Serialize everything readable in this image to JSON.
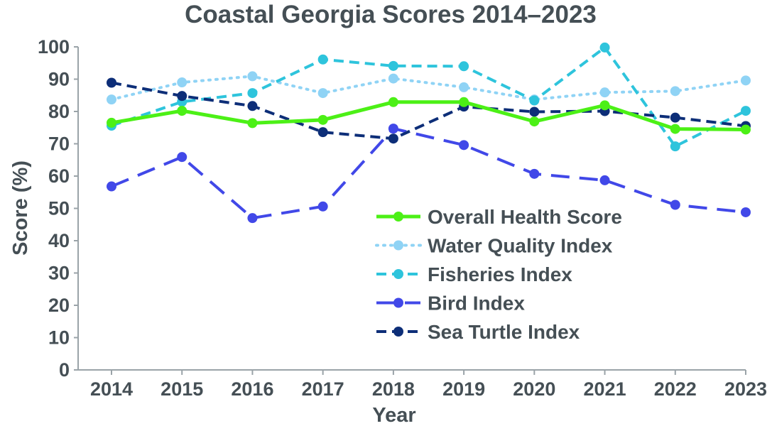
{
  "chart_data": {
    "type": "line",
    "title": "Coastal Georgia Scores 2014–2023",
    "xlabel": "Year",
    "ylabel": "Score (%)",
    "ylim": [
      0,
      100
    ],
    "yticks": [
      0,
      10,
      20,
      30,
      40,
      50,
      60,
      70,
      80,
      90,
      100
    ],
    "grid": false,
    "legend_position": "bottom-right",
    "categories": [
      "2014",
      "2015",
      "2016",
      "2017",
      "2018",
      "2019",
      "2020",
      "2021",
      "2022",
      "2023"
    ],
    "series": [
      {
        "name": "Overall Health Score",
        "color": "#4cf016",
        "style": "solid",
        "values": [
          76.5,
          80.2,
          76.4,
          77.4,
          82.9,
          82.9,
          76.9,
          81.9,
          74.6,
          74.4
        ]
      },
      {
        "name": "Water Quality Index",
        "color": "#8fd3f5",
        "style": "dotted",
        "values": [
          83.7,
          89.0,
          90.9,
          85.7,
          90.2,
          87.5,
          83.7,
          85.9,
          86.3,
          89.6
        ]
      },
      {
        "name": "Fisheries Index",
        "color": "#2ec4dc",
        "style": "dashed",
        "values": [
          75.6,
          83.0,
          85.7,
          96.1,
          94.1,
          94.0,
          83.4,
          99.8,
          69.2,
          80.2
        ]
      },
      {
        "name": "Bird Index",
        "color": "#4148e8",
        "style": "longdash",
        "values": [
          56.8,
          65.9,
          47.0,
          50.6,
          74.7,
          69.6,
          60.7,
          58.7,
          51.1,
          48.8
        ]
      },
      {
        "name": "Sea Turtle Index",
        "color": "#0d2e78",
        "style": "dashed",
        "values": [
          88.9,
          84.8,
          81.7,
          73.6,
          71.6,
          81.5,
          79.9,
          80.1,
          78.1,
          75.5
        ]
      }
    ]
  }
}
